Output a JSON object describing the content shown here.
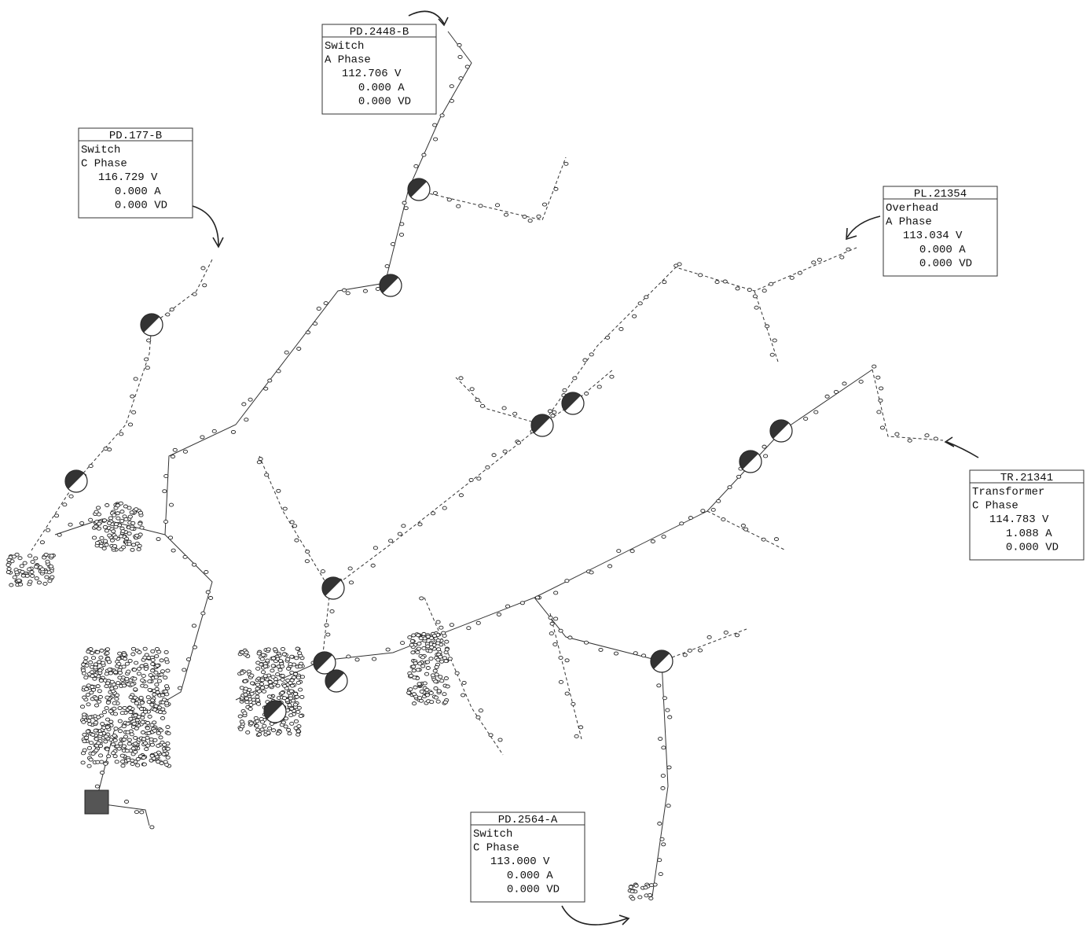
{
  "callouts": [
    {
      "id": "PD.2448-B",
      "type": "Switch",
      "phase": "A Phase",
      "voltage": "112.706 V",
      "current": "0.000 A",
      "vd": "0.000 VD"
    },
    {
      "id": "PD.177-B",
      "type": "Switch",
      "phase": "C Phase",
      "voltage": "116.729 V",
      "current": "0.000 A",
      "vd": "0.000 VD"
    },
    {
      "id": "PL.21354",
      "type": "Overhead",
      "phase": "A Phase",
      "voltage": "113.034 V",
      "current": "0.000 A",
      "vd": "0.000 VD"
    },
    {
      "id": "TR.21341",
      "type": "Transformer",
      "phase": "C Phase",
      "voltage": "114.783 V",
      "current": "1.088 A",
      "vd": "0.000 VD"
    },
    {
      "id": "PD.2564-A",
      "type": "Switch",
      "phase": "C Phase",
      "voltage": "113.000 V",
      "current": "0.000 A",
      "vd": "0.000 VD"
    }
  ]
}
